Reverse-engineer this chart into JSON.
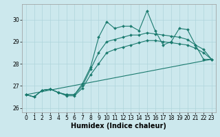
{
  "title": "",
  "xlabel": "Humidex (Indice chaleur)",
  "xlim": [
    -0.5,
    23.5
  ],
  "ylim": [
    25.8,
    30.7
  ],
  "yticks": [
    26,
    27,
    28,
    29,
    30
  ],
  "xticks": [
    0,
    1,
    2,
    3,
    4,
    5,
    6,
    7,
    8,
    9,
    10,
    11,
    12,
    13,
    14,
    15,
    16,
    17,
    18,
    19,
    20,
    21,
    22,
    23
  ],
  "bg_color": "#cce8ed",
  "line_color": "#1a7a6e",
  "lines": [
    {
      "x": [
        0,
        1,
        2,
        3,
        4,
        5,
        6,
        7,
        8,
        9,
        10,
        11,
        12,
        13,
        14,
        15,
        16,
        17,
        18,
        19,
        20,
        21,
        22,
        23
      ],
      "y": [
        26.6,
        26.5,
        26.8,
        26.85,
        26.7,
        26.6,
        26.6,
        27.1,
        27.85,
        29.2,
        29.9,
        29.6,
        29.7,
        29.7,
        29.5,
        30.4,
        29.5,
        28.85,
        29.0,
        29.6,
        29.55,
        28.85,
        28.2,
        28.2
      ],
      "marker": "D",
      "markersize": 2.0
    },
    {
      "x": [
        0,
        1,
        2,
        3,
        4,
        5,
        6,
        7,
        8,
        9,
        10,
        11,
        12,
        13,
        14,
        15,
        16,
        17,
        18,
        19,
        20,
        21,
        22,
        23
      ],
      "y": [
        26.6,
        26.5,
        26.8,
        26.85,
        26.7,
        26.6,
        26.6,
        27.0,
        27.75,
        28.5,
        29.0,
        29.1,
        29.2,
        29.3,
        29.3,
        29.4,
        29.35,
        29.3,
        29.25,
        29.2,
        29.1,
        28.85,
        28.65,
        28.2
      ],
      "marker": "D",
      "markersize": 2.0
    },
    {
      "x": [
        0,
        1,
        2,
        3,
        4,
        5,
        6,
        7,
        8,
        9,
        10,
        11,
        12,
        13,
        14,
        15,
        16,
        17,
        18,
        19,
        20,
        21,
        22,
        23
      ],
      "y": [
        26.6,
        26.5,
        26.8,
        26.85,
        26.7,
        26.55,
        26.55,
        26.9,
        27.5,
        28.0,
        28.5,
        28.65,
        28.75,
        28.85,
        28.95,
        29.05,
        29.05,
        29.0,
        28.95,
        28.9,
        28.85,
        28.7,
        28.5,
        28.2
      ],
      "marker": "D",
      "markersize": 2.0
    },
    {
      "x": [
        0,
        23
      ],
      "y": [
        26.6,
        28.2
      ],
      "marker": null,
      "markersize": 0
    }
  ],
  "grid_color": "#aed4db",
  "tick_fontsize": 5.5,
  "xlabel_fontsize": 7.0
}
